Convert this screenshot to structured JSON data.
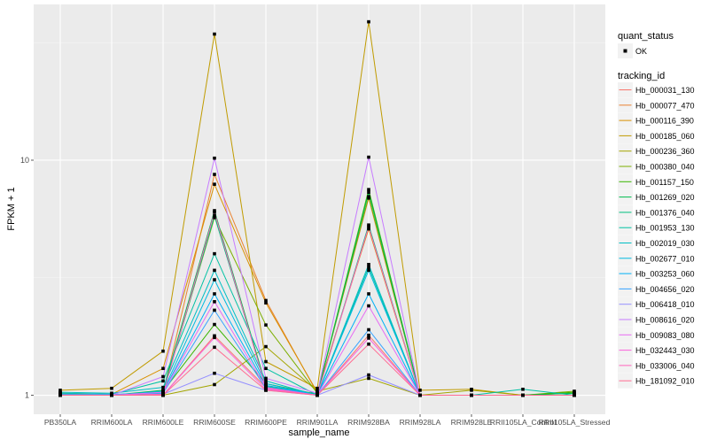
{
  "chart_data": {
    "type": "line",
    "title": "",
    "xlabel": "sample_name",
    "ylabel": "FPKM + 1",
    "yscale": "log10",
    "ylim": [
      0.83,
      46
    ],
    "yticks": [
      1,
      10
    ],
    "ytick_labels": [
      "1",
      "10"
    ],
    "grid": true,
    "legend_position": "right",
    "categories": [
      "PB350LA",
      "RRIM600LA",
      "RRIM600LE",
      "RRIM600SE",
      "RRIM600PE",
      "RRIM901LA",
      "RRIM928BA",
      "RRIM928LA",
      "RRIM928LE",
      "RRII105LA_Control",
      "RRII105LA_Stressed"
    ],
    "legend_quant": {
      "title": "quant_status",
      "entries": [
        "OK"
      ]
    },
    "legend_tracking_title": "tracking_id",
    "series": [
      {
        "name": "Hb_000031_130",
        "color": "#F8766D",
        "values": [
          1.0,
          1.0,
          1.0,
          1.79,
          1.08,
          1.0,
          1.8,
          1.0,
          1.0,
          1.0,
          1.0
        ]
      },
      {
        "name": "Hb_000077_470",
        "color": "#EA8331",
        "values": [
          1.01,
          1.0,
          1.02,
          8.7,
          2.53,
          1.02,
          6.9,
          1.0,
          1.0,
          1.0,
          1.0
        ]
      },
      {
        "name": "Hb_000116_390",
        "color": "#D89000",
        "values": [
          1.02,
          1.01,
          1.3,
          7.9,
          2.47,
          1.03,
          5.1,
          1.0,
          1.0,
          1.0,
          1.0
        ]
      },
      {
        "name": "Hb_000185_060",
        "color": "#C09B00",
        "values": [
          1.05,
          1.07,
          1.54,
          34.4,
          1.39,
          1.07,
          38.8,
          1.05,
          1.06,
          1.0,
          1.02
        ]
      },
      {
        "name": "Hb_000236_360",
        "color": "#A3A500",
        "values": [
          1.0,
          1.0,
          1.0,
          1.11,
          1.61,
          1.04,
          1.18,
          1.0,
          1.05,
          1.0,
          1.0
        ]
      },
      {
        "name": "Hb_000380_040",
        "color": "#7CAE00",
        "values": [
          1.0,
          1.0,
          1.03,
          5.7,
          1.99,
          1.02,
          7.0,
          1.0,
          1.0,
          1.0,
          1.04
        ]
      },
      {
        "name": "Hb_001157_150",
        "color": "#39B600",
        "values": [
          1.0,
          1.0,
          1.04,
          2.0,
          1.12,
          1.01,
          7.5,
          1.0,
          1.0,
          1.0,
          1.03
        ]
      },
      {
        "name": "Hb_001269_020",
        "color": "#00BB4E",
        "values": [
          1.0,
          1.0,
          1.05,
          6.1,
          1.1,
          1.01,
          7.3,
          1.0,
          1.0,
          1.0,
          1.02
        ]
      },
      {
        "name": "Hb_001376_040",
        "color": "#00BF7D",
        "values": [
          1.0,
          1.0,
          1.02,
          5.8,
          1.09,
          1.0,
          5.3,
          1.0,
          1.0,
          1.0,
          1.0
        ]
      },
      {
        "name": "Hb_001953_130",
        "color": "#00C1A3",
        "values": [
          1.02,
          1.01,
          1.15,
          4.0,
          1.3,
          1.0,
          3.5,
          1.0,
          1.0,
          1.06,
          1.0
        ]
      },
      {
        "name": "Hb_002019_030",
        "color": "#00BFC4",
        "values": [
          1.03,
          1.02,
          1.08,
          3.4,
          1.15,
          1.0,
          3.6,
          1.0,
          1.0,
          1.0,
          1.0
        ]
      },
      {
        "name": "Hb_002677_010",
        "color": "#00BAE0",
        "values": [
          1.0,
          1.0,
          1.04,
          3.1,
          1.12,
          1.0,
          3.4,
          1.0,
          1.0,
          1.0,
          1.0
        ]
      },
      {
        "name": "Hb_003253_060",
        "color": "#00B0F6",
        "values": [
          1.0,
          1.0,
          1.03,
          2.7,
          1.1,
          1.0,
          2.7,
          1.0,
          1.0,
          1.0,
          1.0
        ]
      },
      {
        "name": "Hb_004656_020",
        "color": "#35A2FF",
        "values": [
          1.01,
          1.01,
          1.02,
          2.3,
          1.07,
          1.0,
          1.9,
          1.0,
          1.0,
          1.0,
          1.0
        ]
      },
      {
        "name": "Hb_006418_010",
        "color": "#9590FF",
        "values": [
          1.0,
          1.0,
          1.01,
          1.24,
          1.05,
          1.0,
          1.22,
          1.0,
          1.0,
          1.0,
          1.0
        ]
      },
      {
        "name": "Hb_008616_020",
        "color": "#C77CFF",
        "values": [
          1.0,
          1.0,
          1.2,
          10.2,
          1.18,
          1.02,
          10.3,
          1.0,
          1.0,
          1.0,
          1.0
        ]
      },
      {
        "name": "Hb_009083_080",
        "color": "#E76BF3",
        "values": [
          1.0,
          1.0,
          1.03,
          2.5,
          1.08,
          1.0,
          2.4,
          1.0,
          1.0,
          1.0,
          1.0
        ]
      },
      {
        "name": "Hb_032443_030",
        "color": "#FA62DB",
        "values": [
          1.0,
          1.0,
          1.0,
          1.76,
          1.06,
          1.0,
          1.75,
          1.0,
          1.0,
          1.0,
          1.0
        ]
      },
      {
        "name": "Hb_033006_040",
        "color": "#FF62BC",
        "values": [
          1.0,
          1.0,
          1.01,
          6.0,
          1.07,
          1.0,
          5.2,
          1.0,
          1.0,
          1.0,
          1.0
        ]
      },
      {
        "name": "Hb_181092_010",
        "color": "#FF6C91",
        "values": [
          1.0,
          1.0,
          1.0,
          1.6,
          1.05,
          1.0,
          1.65,
          1.0,
          1.0,
          1.0,
          1.0
        ]
      }
    ]
  }
}
